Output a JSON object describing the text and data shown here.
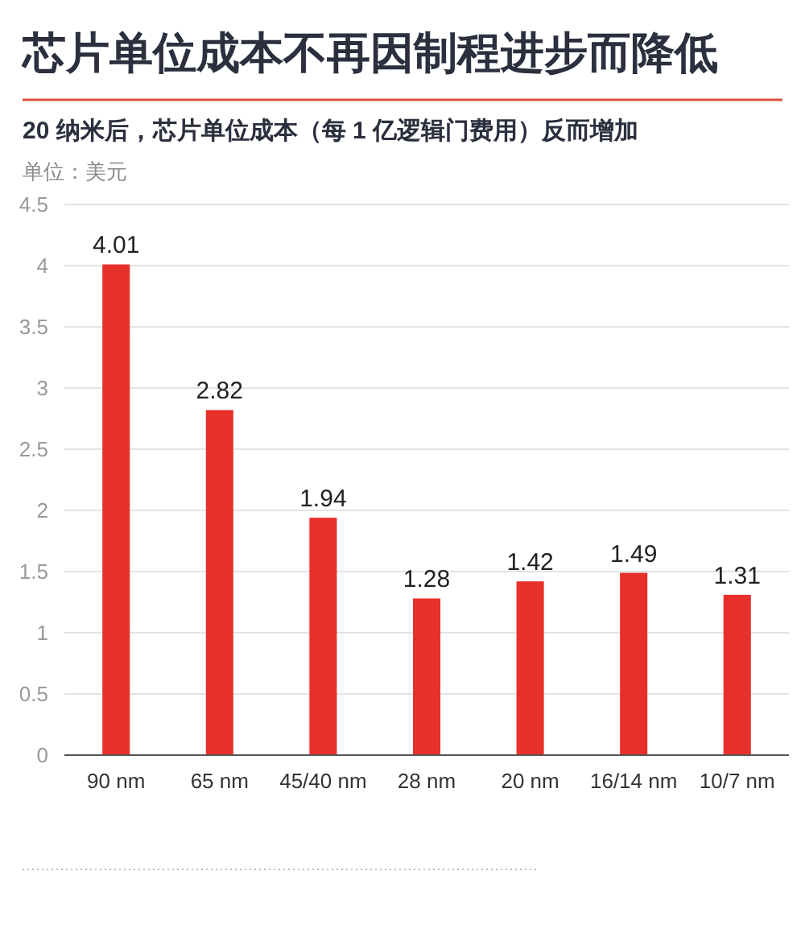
{
  "chart_data": {
    "type": "bar",
    "title": "芯片单位成本不再因制程进步而降低",
    "subtitle": "20 纳米后，芯片单位成本（每 1 亿逻辑门费用）反而增加",
    "ylabel": "单位：美元",
    "categories": [
      "90 nm",
      "65 nm",
      "45/40 nm",
      "28 nm",
      "20 nm",
      "16/14 nm",
      "10/7 nm"
    ],
    "values": [
      4.01,
      2.82,
      1.94,
      1.28,
      1.42,
      1.49,
      1.31
    ],
    "color": "#e8302a",
    "ylim": [
      0,
      4.5
    ],
    "yticks": [
      0,
      0.5,
      1,
      1.5,
      2,
      2.5,
      3,
      3.5,
      4,
      4.5
    ],
    "grid": "y",
    "data_labels": true
  }
}
